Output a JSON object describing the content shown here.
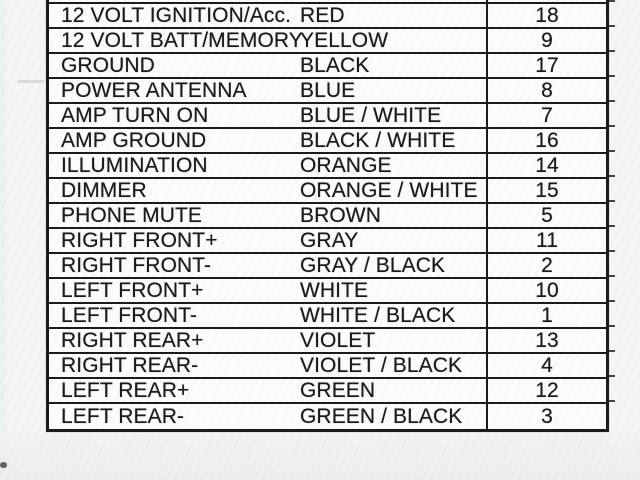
{
  "colors": {
    "ink": "#1b1b1b",
    "paper": "#f5f6f4",
    "cell": "#fcfcfb",
    "tint": "#e9f6ee"
  },
  "table": {
    "rows": [
      {
        "function": "12 VOLT IGNITION/Acc.",
        "color": "RED",
        "pin": "18"
      },
      {
        "function": "12 VOLT BATT/MEMORY",
        "color": "YELLOW",
        "pin": "9"
      },
      {
        "function": "GROUND",
        "color": "BLACK",
        "pin": "17"
      },
      {
        "function": "POWER ANTENNA",
        "color": "BLUE",
        "pin": "8"
      },
      {
        "function": "AMP TURN ON",
        "color": "BLUE / WHITE",
        "pin": "7"
      },
      {
        "function": "AMP GROUND",
        "color": "BLACK / WHITE",
        "pin": "16"
      },
      {
        "function": "ILLUMINATION",
        "color": "ORANGE",
        "pin": "14"
      },
      {
        "function": "DIMMER",
        "color": "ORANGE / WHITE",
        "pin": "15"
      },
      {
        "function": "PHONE MUTE",
        "color": "BROWN",
        "pin": "5"
      },
      {
        "function": "RIGHT FRONT+",
        "color": "GRAY",
        "pin": "11"
      },
      {
        "function": "RIGHT FRONT-",
        "color": "GRAY / BLACK",
        "pin": "2"
      },
      {
        "function": "LEFT FRONT+",
        "color": "WHITE",
        "pin": "10"
      },
      {
        "function": "LEFT FRONT-",
        "color": "WHITE / BLACK",
        "pin": "1"
      },
      {
        "function": "RIGHT REAR+",
        "color": "VIOLET",
        "pin": "13"
      },
      {
        "function": "RIGHT REAR-",
        "color": "VIOLET / BLACK",
        "pin": "4"
      },
      {
        "function": "LEFT REAR+",
        "color": "GREEN",
        "pin": "12"
      },
      {
        "function": "LEFT REAR-",
        "color": "GREEN / BLACK",
        "pin": "3"
      }
    ]
  }
}
